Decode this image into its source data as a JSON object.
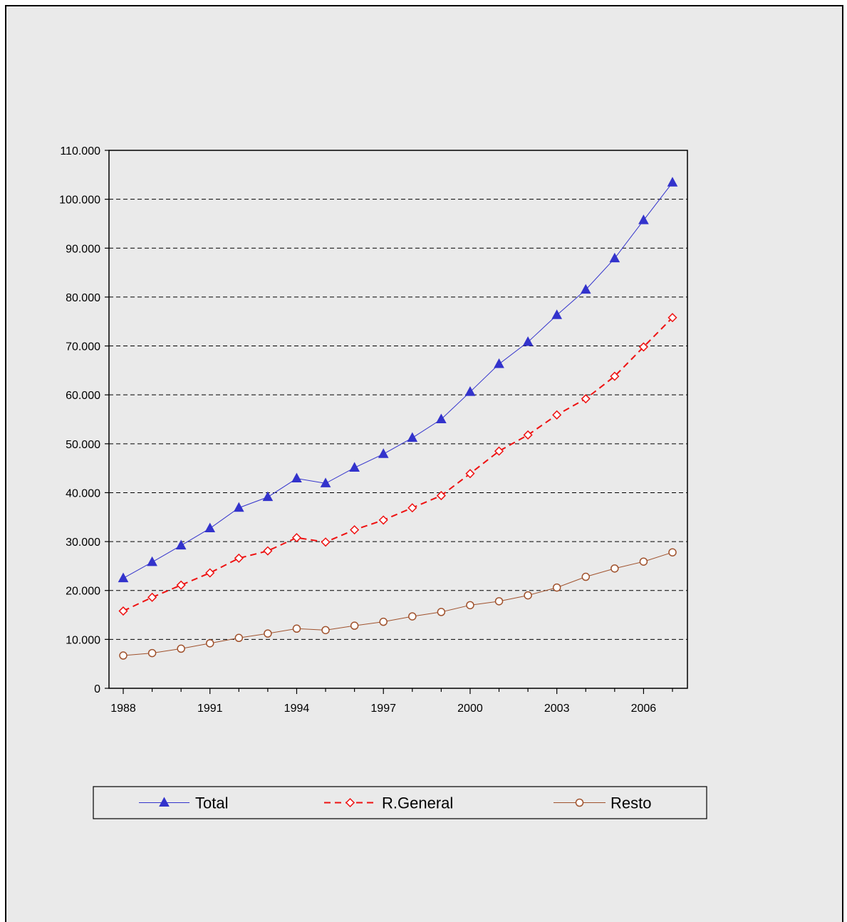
{
  "chart_data": {
    "type": "line",
    "title": "",
    "xlabel": "",
    "ylabel": "",
    "x": [
      1988,
      1989,
      1990,
      1991,
      1992,
      1993,
      1994,
      1995,
      1996,
      1997,
      1998,
      1999,
      2000,
      2001,
      2002,
      2003,
      2004,
      2005,
      2006,
      2007
    ],
    "x_tick_labels": [
      "1988",
      "1991",
      "1994",
      "1997",
      "2000",
      "2003",
      "2006"
    ],
    "y_tick_labels": [
      "0",
      "10.000",
      "20.000",
      "30.000",
      "40.000",
      "50.000",
      "60.000",
      "70.000",
      "80.000",
      "90.000",
      "100.000",
      "110.000"
    ],
    "ylim": [
      0,
      110000
    ],
    "grid": "horizontal dashed",
    "legend_position": "bottom",
    "series": [
      {
        "name": "Total",
        "color": "#3333cc",
        "marker": "triangle",
        "line": "solid",
        "values": [
          22500,
          25800,
          29200,
          32700,
          36900,
          39100,
          42900,
          41900,
          45100,
          47900,
          51200,
          55000,
          60600,
          66300,
          70800,
          76300,
          81500,
          87900,
          95700,
          103400
        ]
      },
      {
        "name": "R.General",
        "color": "#ee1111",
        "marker": "diamond",
        "line": "dashed",
        "values": [
          15800,
          18600,
          21100,
          23600,
          26600,
          28100,
          30800,
          29900,
          32400,
          34400,
          36900,
          39400,
          43900,
          48500,
          51800,
          55900,
          59200,
          63800,
          69800,
          75800
        ]
      },
      {
        "name": "Resto",
        "color": "#a0522d",
        "marker": "circle",
        "line": "solid",
        "values": [
          6700,
          7200,
          8100,
          9200,
          10300,
          11200,
          12200,
          11900,
          12800,
          13600,
          14700,
          15600,
          17000,
          17800,
          19000,
          20600,
          22800,
          24500,
          25900,
          27800
        ]
      }
    ]
  }
}
